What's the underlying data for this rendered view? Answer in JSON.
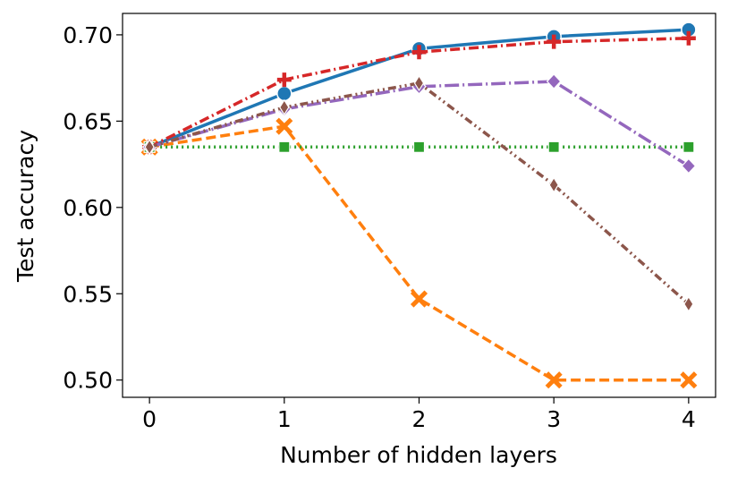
{
  "chart_data": {
    "type": "line",
    "x_label": "Number of hidden layers",
    "y_label": "Test accuracy",
    "x": [
      0,
      1,
      2,
      3,
      4
    ],
    "series": [
      {
        "color": "#1f77b4",
        "marker": "circle",
        "dash": "solid",
        "values": [
          0.635,
          0.666,
          0.692,
          0.699,
          0.703
        ]
      },
      {
        "color": "#ff7f0e",
        "marker": "x",
        "dash": "dashed",
        "values": [
          0.635,
          0.647,
          0.547,
          0.5,
          0.5
        ]
      },
      {
        "color": "#2ca02c",
        "marker": "square",
        "dash": "dotted",
        "values": [
          0.635,
          0.635,
          0.635,
          0.635,
          0.635
        ]
      },
      {
        "color": "#d62728",
        "marker": "plus",
        "dash": "dashdot",
        "values": [
          0.635,
          0.674,
          0.69,
          0.696,
          0.698
        ]
      },
      {
        "color": "#9467bd",
        "marker": "diamond",
        "dash": "longdashdot",
        "values": [
          0.635,
          0.657,
          0.67,
          0.673,
          0.624
        ]
      },
      {
        "color": "#8c564b",
        "marker": "thin_diamond",
        "dash": "dashdotdot",
        "values": [
          0.635,
          0.658,
          0.672,
          0.613,
          0.544
        ]
      }
    ],
    "xlim": [
      -0.2,
      4.2
    ],
    "ylim": [
      0.49,
      0.7124
    ],
    "xticks": [
      0,
      1,
      2,
      3,
      4
    ],
    "yticks": [
      {
        "value": 0.5,
        "label": "0.50"
      },
      {
        "value": 0.55,
        "label": "0.55"
      },
      {
        "value": 0.6,
        "label": "0.60"
      },
      {
        "value": 0.65,
        "label": "0.65"
      },
      {
        "value": 0.7,
        "label": "0.70"
      }
    ],
    "grid": false
  }
}
